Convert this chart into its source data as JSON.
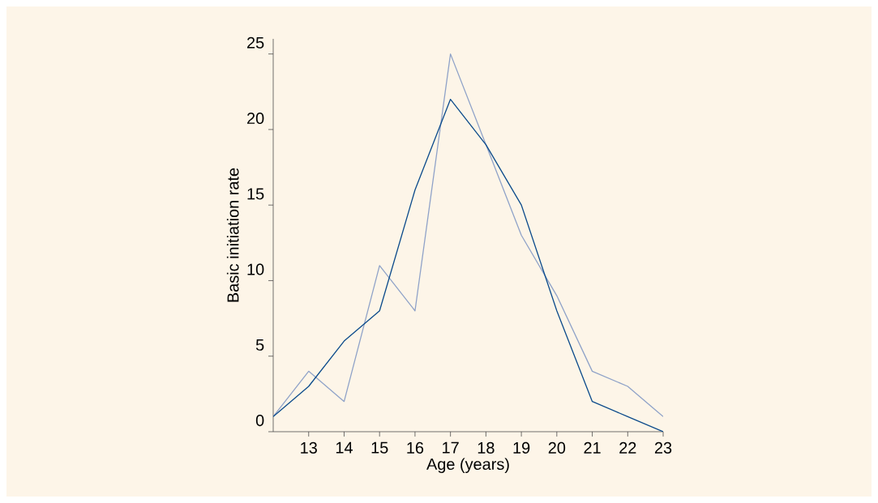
{
  "chart_data": {
    "type": "line",
    "xlabel": "Age (years)",
    "ylabel": "Basic initiation rate",
    "x": [
      12,
      13,
      14,
      15,
      16,
      17,
      18,
      19,
      20,
      21,
      22,
      23
    ],
    "series": [
      {
        "color": "#8fa2c8",
        "values": [
          1,
          4,
          2,
          11,
          8,
          25,
          19,
          13,
          9,
          4,
          3,
          1
        ]
      },
      {
        "color": "#0b4a8b",
        "values": [
          1,
          3,
          6,
          8,
          16,
          22,
          19,
          15,
          8,
          2,
          1,
          0
        ]
      }
    ],
    "xlim": [
      12,
      23
    ],
    "ylim": [
      0,
      26
    ],
    "xticks": [
      13,
      14,
      15,
      16,
      17,
      18,
      19,
      20,
      21,
      22,
      23
    ],
    "yticks": [
      0,
      5,
      10,
      15,
      20,
      25
    ],
    "grid": false,
    "marker": "none",
    "line_style": "solid"
  }
}
